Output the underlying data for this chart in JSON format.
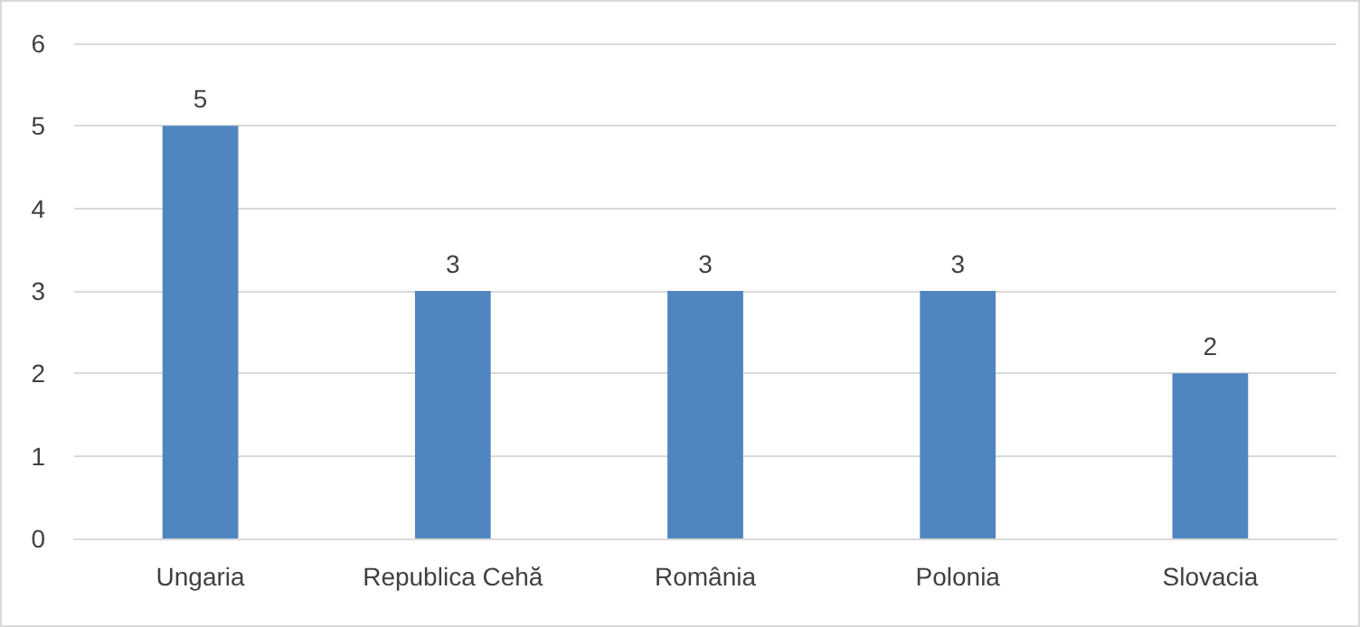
{
  "chart_data": {
    "type": "bar",
    "categories": [
      "Ungaria",
      "Republica Cehă",
      "România",
      "Polonia",
      "Slovacia"
    ],
    "values": [
      5,
      3,
      3,
      3,
      2
    ],
    "color": "#4f86bf",
    "ylim": [
      0,
      6
    ],
    "yticks": [
      0,
      1,
      2,
      3,
      4,
      5,
      6
    ],
    "grid": "y",
    "data_labels": true
  }
}
